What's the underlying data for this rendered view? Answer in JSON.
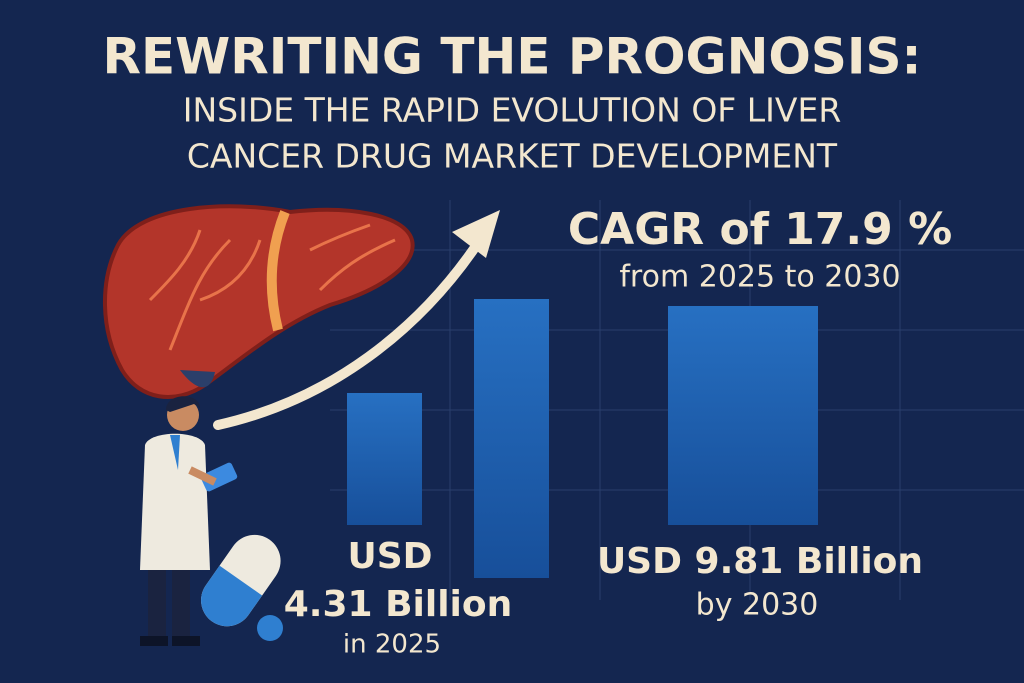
{
  "header": {
    "title": "REWRITING THE PROGNOSIS:",
    "subtitle_lines": [
      "INSIDE THE RAPID EVOLUTION OF LIVER",
      "CANCER DRUG MARKET DEVELOPMENT"
    ]
  },
  "cagr": {
    "headline": "CAGR of 17.9 %",
    "period": "from 2025 to 2030"
  },
  "stats": [
    {
      "lines": [
        "USD",
        "4.31 Billion",
        "in 2025"
      ]
    },
    {
      "lines": [
        "USD 9.81 Billion",
        "by 2030"
      ]
    }
  ]
}
